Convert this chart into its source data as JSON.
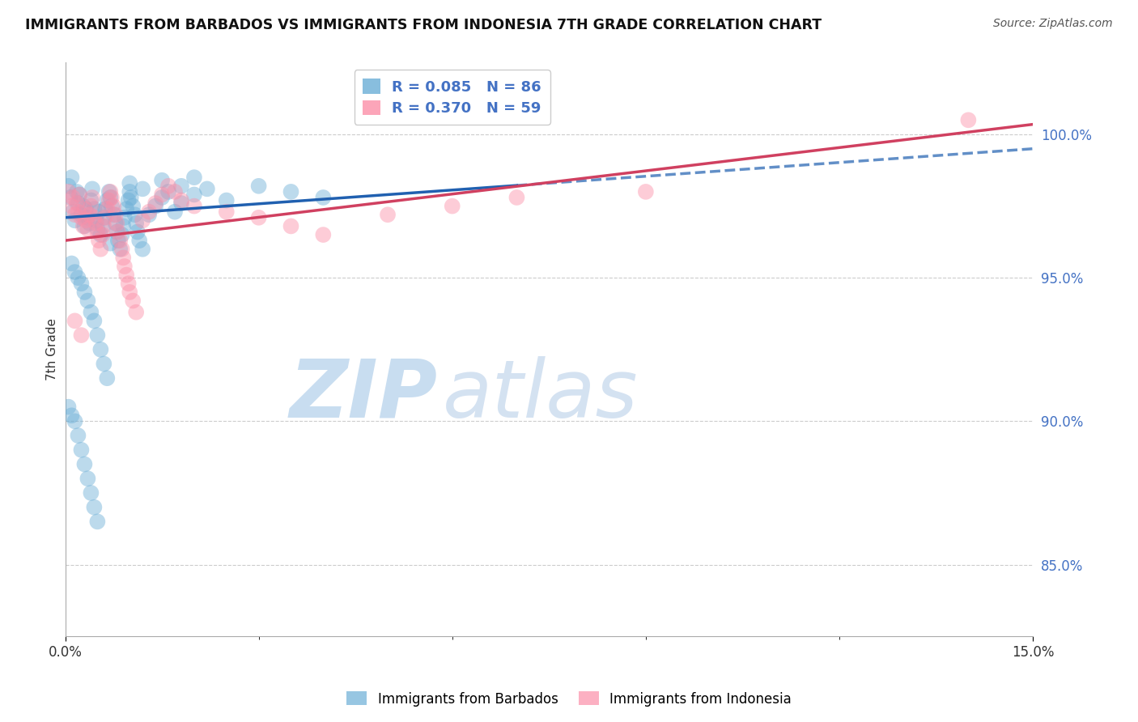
{
  "title": "IMMIGRANTS FROM BARBADOS VS IMMIGRANTS FROM INDONESIA 7TH GRADE CORRELATION CHART",
  "source": "Source: ZipAtlas.com",
  "ylabel": "7th Grade",
  "y_ticks": [
    85.0,
    90.0,
    95.0,
    100.0
  ],
  "y_tick_labels": [
    "85.0%",
    "90.0%",
    "95.0%",
    "100.0%"
  ],
  "xmin": 0.0,
  "xmax": 15.0,
  "ymin": 82.5,
  "ymax": 102.5,
  "R_blue": 0.085,
  "N_blue": 86,
  "R_pink": 0.37,
  "N_pink": 59,
  "blue_color": "#6baed6",
  "pink_color": "#fc8fa8",
  "blue_line_color": "#2060b0",
  "pink_line_color": "#d04060",
  "legend_label_blue": "Immigrants from Barbados",
  "legend_label_pink": "Immigrants from Indonesia",
  "watermark_zip": "ZIP",
  "watermark_atlas": "atlas",
  "watermark_color": "#c8ddf0",
  "blue_scatter_x": [
    0.05,
    0.08,
    0.1,
    0.12,
    0.15,
    0.18,
    0.2,
    0.22,
    0.25,
    0.28,
    0.3,
    0.32,
    0.35,
    0.38,
    0.4,
    0.42,
    0.45,
    0.48,
    0.5,
    0.52,
    0.55,
    0.58,
    0.6,
    0.62,
    0.65,
    0.68,
    0.7,
    0.72,
    0.75,
    0.78,
    0.8,
    0.82,
    0.85,
    0.88,
    0.9,
    0.92,
    0.95,
    0.98,
    1.0,
    1.02,
    1.05,
    1.08,
    1.1,
    1.12,
    1.15,
    1.2,
    1.3,
    1.4,
    1.5,
    1.6,
    1.7,
    1.8,
    2.0,
    2.2,
    2.5,
    3.0,
    3.5,
    4.0,
    0.1,
    0.15,
    0.2,
    0.25,
    0.3,
    0.35,
    0.4,
    0.45,
    0.5,
    0.55,
    0.6,
    0.65,
    0.05,
    0.1,
    0.15,
    0.2,
    0.25,
    0.3,
    0.35,
    0.4,
    0.45,
    0.5,
    1.0,
    1.2,
    1.5,
    2.0,
    1.8,
    0.7
  ],
  "blue_scatter_y": [
    98.2,
    97.8,
    98.5,
    97.3,
    97.0,
    98.0,
    97.6,
    97.9,
    97.2,
    97.5,
    96.8,
    97.4,
    97.1,
    96.9,
    97.7,
    98.1,
    97.4,
    97.0,
    96.7,
    97.3,
    96.5,
    96.8,
    97.1,
    97.4,
    97.7,
    98.0,
    97.8,
    97.5,
    97.2,
    96.9,
    96.6,
    96.3,
    96.0,
    96.5,
    96.8,
    97.1,
    97.4,
    97.7,
    98.0,
    97.8,
    97.5,
    97.2,
    96.9,
    96.6,
    96.3,
    96.0,
    97.2,
    97.5,
    97.8,
    98.0,
    97.3,
    97.6,
    97.9,
    98.1,
    97.7,
    98.2,
    98.0,
    97.8,
    95.5,
    95.2,
    95.0,
    94.8,
    94.5,
    94.2,
    93.8,
    93.5,
    93.0,
    92.5,
    92.0,
    91.5,
    90.5,
    90.2,
    90.0,
    89.5,
    89.0,
    88.5,
    88.0,
    87.5,
    87.0,
    86.5,
    98.3,
    98.1,
    98.4,
    98.5,
    98.2,
    96.2
  ],
  "pink_scatter_x": [
    0.05,
    0.1,
    0.12,
    0.15,
    0.18,
    0.2,
    0.22,
    0.25,
    0.28,
    0.3,
    0.32,
    0.35,
    0.38,
    0.4,
    0.42,
    0.45,
    0.48,
    0.5,
    0.52,
    0.55,
    0.58,
    0.6,
    0.62,
    0.65,
    0.68,
    0.7,
    0.72,
    0.75,
    0.78,
    0.8,
    0.82,
    0.85,
    0.88,
    0.9,
    0.92,
    0.95,
    0.98,
    1.0,
    1.05,
    1.1,
    1.2,
    1.3,
    1.4,
    1.5,
    1.6,
    1.7,
    1.8,
    2.0,
    2.5,
    3.0,
    3.5,
    4.0,
    5.0,
    6.0,
    7.0,
    9.0,
    0.15,
    0.25,
    14.0
  ],
  "pink_scatter_y": [
    98.0,
    97.5,
    97.8,
    97.2,
    97.6,
    97.3,
    97.9,
    97.1,
    96.8,
    97.4,
    97.0,
    96.7,
    97.2,
    97.5,
    97.8,
    97.1,
    96.9,
    96.6,
    96.3,
    96.0,
    96.5,
    96.8,
    97.1,
    97.4,
    97.7,
    98.0,
    97.8,
    97.5,
    97.2,
    96.9,
    96.6,
    96.3,
    96.0,
    95.7,
    95.4,
    95.1,
    94.8,
    94.5,
    94.2,
    93.8,
    97.0,
    97.3,
    97.6,
    97.9,
    98.2,
    98.0,
    97.7,
    97.5,
    97.3,
    97.1,
    96.8,
    96.5,
    97.2,
    97.5,
    97.8,
    98.0,
    93.5,
    93.0,
    100.5
  ]
}
